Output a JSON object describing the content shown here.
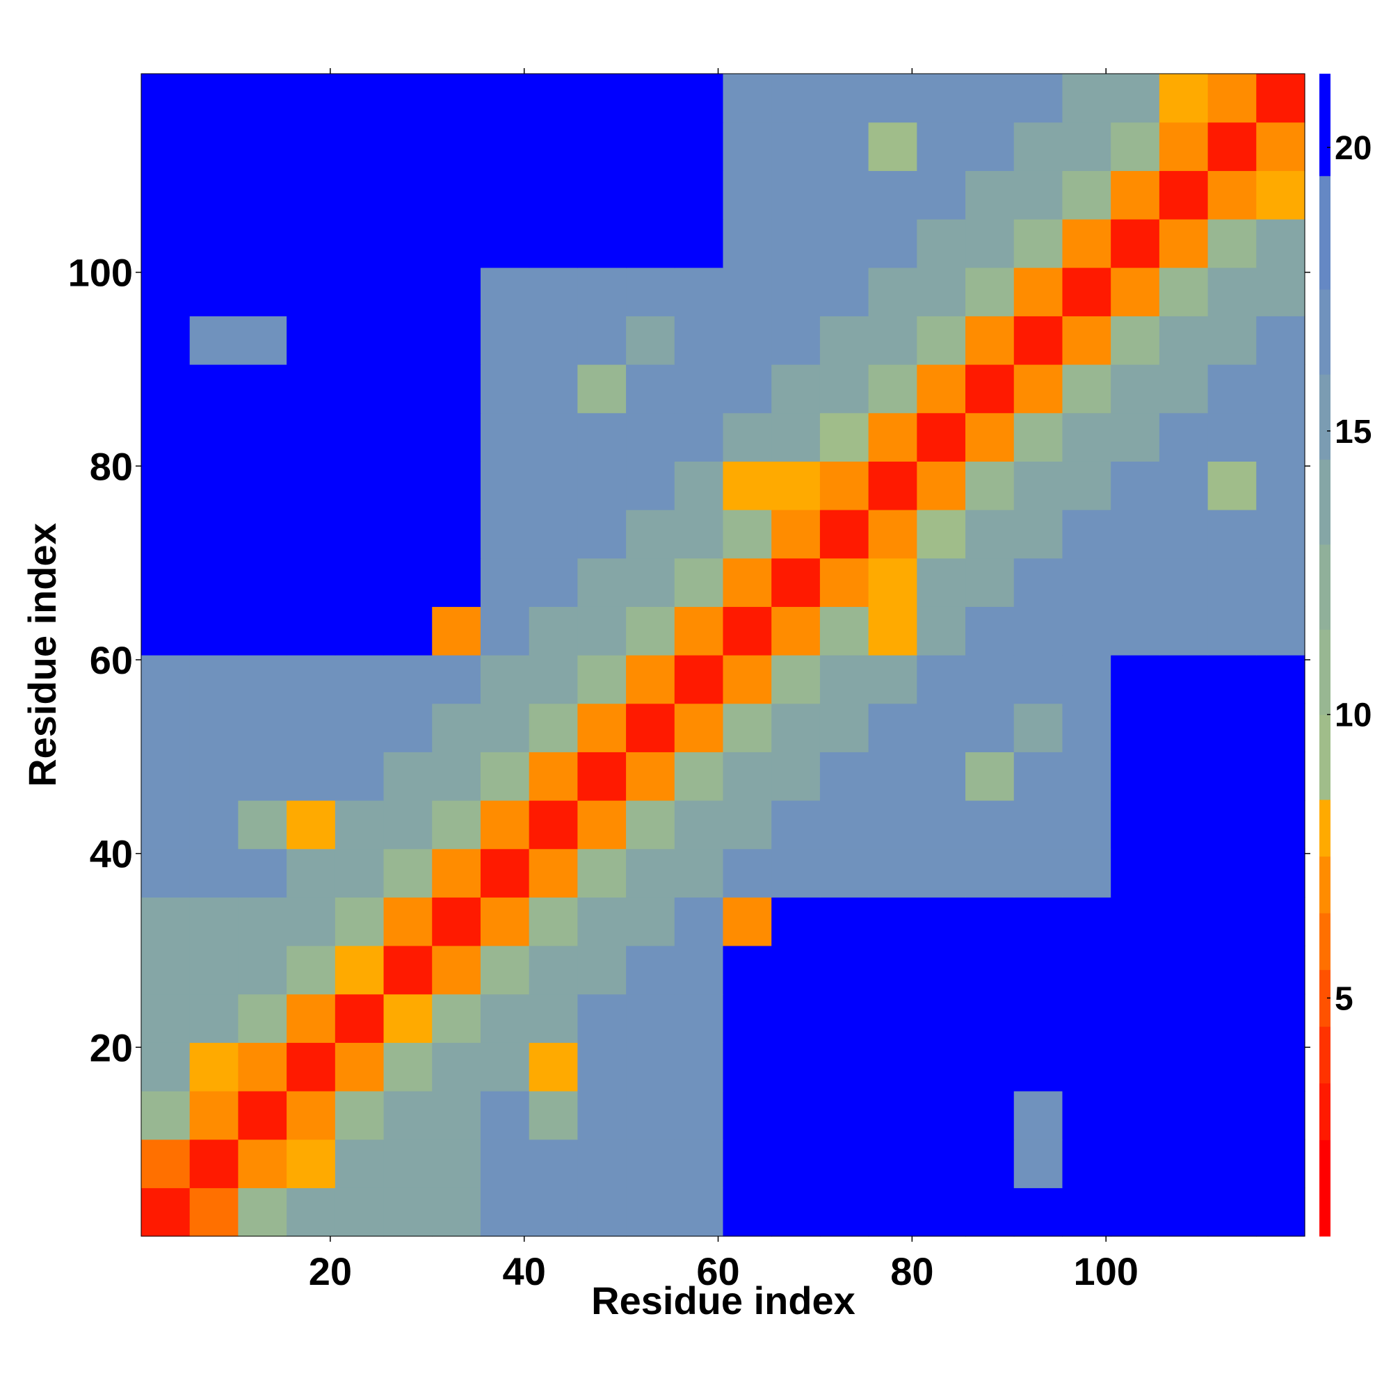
{
  "chart_data": {
    "type": "heatmap",
    "xlabel": "Residue index",
    "ylabel": "Residue index",
    "xlim": [
      0.5,
      120.5
    ],
    "ylim": [
      0.5,
      120.5
    ],
    "xticks": [
      20,
      40,
      60,
      80,
      100
    ],
    "yticks": [
      20,
      40,
      60,
      80,
      100
    ],
    "bins": [
      0.5,
      5.5,
      10.5,
      15.5,
      20.5,
      25.5,
      30.5,
      35.5,
      40.5,
      45.5,
      50.5,
      55.5,
      60.5,
      65.5,
      70.5,
      75.5,
      80.5,
      85.5,
      90.5,
      95.5,
      100.5,
      105.5,
      110.5,
      115.5,
      120.5
    ],
    "z": [
      [
        3,
        6,
        11,
        13,
        13,
        13,
        13,
        17,
        17,
        17,
        17,
        17,
        20,
        20,
        20,
        20,
        20,
        20,
        20,
        20,
        22,
        22,
        22,
        22
      ],
      [
        6,
        3,
        7,
        8,
        13,
        13,
        13,
        17,
        17,
        17,
        17,
        17,
        20,
        20,
        20,
        20,
        20,
        20,
        17,
        20,
        22,
        22,
        22,
        22
      ],
      [
        11,
        7,
        3,
        7,
        11,
        13,
        13,
        17,
        12,
        17,
        17,
        17,
        20,
        20,
        20,
        20,
        20,
        20,
        17,
        20,
        22,
        22,
        22,
        22
      ],
      [
        13,
        8,
        7,
        3,
        7,
        11,
        13,
        14,
        8,
        17,
        17,
        17,
        20,
        20,
        20,
        20,
        20,
        20,
        20,
        20,
        22,
        22,
        22,
        22
      ],
      [
        13,
        13,
        11,
        7,
        3,
        8,
        11,
        13,
        14,
        17,
        17,
        17,
        20,
        20,
        20,
        20,
        20,
        20,
        20,
        20,
        22,
        22,
        22,
        22
      ],
      [
        13,
        13,
        13,
        11,
        8,
        3,
        7,
        11,
        13,
        14,
        17,
        17,
        20,
        20,
        20,
        20,
        20,
        20,
        20,
        20,
        22,
        22,
        22,
        22
      ],
      [
        13,
        13,
        13,
        13,
        11,
        7,
        3,
        7,
        11,
        13,
        14,
        17,
        7,
        20,
        20,
        20,
        20,
        20,
        20,
        20,
        22,
        22,
        22,
        22
      ],
      [
        17,
        17,
        17,
        14,
        13,
        11,
        7,
        3,
        7,
        11,
        13,
        14,
        16,
        16,
        16,
        16,
        16,
        16,
        16,
        16,
        21,
        21,
        21,
        21
      ],
      [
        17,
        17,
        12,
        8,
        14,
        13,
        11,
        7,
        3,
        7,
        11,
        13,
        14,
        16,
        16,
        16,
        16,
        16,
        16,
        16,
        21,
        21,
        21,
        21
      ],
      [
        17,
        17,
        17,
        17,
        17,
        14,
        13,
        11,
        7,
        3,
        7,
        11,
        13,
        14,
        16,
        16,
        16,
        11,
        16,
        16,
        21,
        21,
        21,
        21
      ],
      [
        17,
        17,
        17,
        17,
        17,
        17,
        14,
        13,
        11,
        7,
        3,
        7,
        11,
        13,
        14,
        16,
        16,
        16,
        13,
        16,
        21,
        21,
        21,
        21
      ],
      [
        17,
        17,
        17,
        17,
        17,
        17,
        17,
        14,
        13,
        11,
        7,
        3,
        7,
        11,
        13,
        14,
        16,
        16,
        16,
        16,
        21,
        21,
        21,
        21
      ],
      [
        20,
        20,
        20,
        20,
        20,
        20,
        7,
        16,
        14,
        13,
        11,
        7,
        3,
        7,
        11,
        8,
        14,
        16,
        16,
        16,
        17,
        17,
        17,
        17
      ],
      [
        20,
        20,
        20,
        20,
        20,
        20,
        20,
        16,
        16,
        14,
        13,
        11,
        7,
        3,
        7,
        8,
        13,
        14,
        16,
        16,
        17,
        17,
        17,
        17
      ],
      [
        20,
        20,
        20,
        20,
        20,
        20,
        20,
        16,
        16,
        16,
        14,
        13,
        11,
        7,
        3,
        7,
        9,
        13,
        14,
        16,
        17,
        17,
        17,
        17
      ],
      [
        20,
        20,
        20,
        20,
        20,
        20,
        20,
        16,
        16,
        16,
        16,
        14,
        8,
        8,
        7,
        3,
        7,
        11,
        13,
        14,
        17,
        17,
        9,
        17
      ],
      [
        20,
        20,
        20,
        20,
        20,
        20,
        20,
        16,
        16,
        16,
        16,
        16,
        14,
        13,
        9,
        7,
        3,
        7,
        11,
        13,
        14,
        17,
        17,
        17
      ],
      [
        20,
        20,
        20,
        20,
        20,
        20,
        20,
        16,
        16,
        11,
        16,
        16,
        16,
        14,
        13,
        11,
        7,
        3,
        7,
        11,
        13,
        14,
        17,
        17
      ],
      [
        20,
        17,
        17,
        20,
        20,
        20,
        20,
        16,
        16,
        16,
        13,
        16,
        16,
        16,
        14,
        13,
        11,
        7,
        3,
        7,
        11,
        13,
        14,
        17
      ],
      [
        20,
        20,
        20,
        20,
        20,
        20,
        20,
        16,
        16,
        16,
        16,
        16,
        16,
        16,
        16,
        14,
        13,
        11,
        7,
        3,
        7,
        11,
        13,
        14
      ],
      [
        22,
        22,
        22,
        22,
        22,
        22,
        22,
        21,
        21,
        21,
        21,
        21,
        17,
        17,
        17,
        17,
        14,
        13,
        11,
        7,
        3,
        7,
        10,
        13
      ],
      [
        22,
        22,
        22,
        22,
        22,
        22,
        22,
        21,
        21,
        21,
        21,
        21,
        17,
        17,
        17,
        17,
        17,
        14,
        13,
        11,
        7,
        3,
        7,
        8
      ],
      [
        22,
        22,
        22,
        22,
        22,
        22,
        22,
        21,
        21,
        21,
        21,
        21,
        17,
        17,
        17,
        9,
        17,
        17,
        14,
        13,
        10,
        7,
        3,
        7
      ],
      [
        22,
        22,
        22,
        22,
        22,
        22,
        22,
        21,
        21,
        21,
        21,
        21,
        17,
        17,
        17,
        17,
        17,
        17,
        17,
        14,
        13,
        8,
        7,
        3
      ]
    ],
    "colorbar": {
      "levels": [
        0.8,
        2.5,
        3.5,
        4.5,
        5.5,
        6.5,
        7.5,
        8.5,
        10,
        11.5,
        13,
        14.5,
        16,
        17.5,
        19.5,
        21.3
      ],
      "colors": [
        "#ff0000",
        "#ff1a00",
        "#ff3300",
        "#ff5200",
        "#ff7000",
        "#ff8c00",
        "#ffaa00",
        "#a0bd8a",
        "#98b792",
        "#90b09a",
        "#85a6a6",
        "#7b9cb2",
        "#7092bd",
        "#6588c4",
        "#0000ff"
      ],
      "ticks": [
        5,
        10,
        15,
        20
      ]
    }
  }
}
